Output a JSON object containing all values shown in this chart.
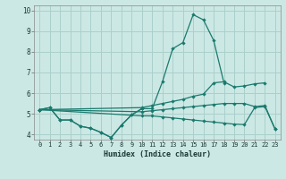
{
  "xlabel": "Humidex (Indice chaleur)",
  "background_color": "#cce8e4",
  "grid_color": "#aad0cc",
  "line_color": "#1a7a6e",
  "xlim": [
    -0.5,
    23.5
  ],
  "ylim": [
    3.75,
    10.25
  ],
  "xticks": [
    0,
    1,
    2,
    3,
    4,
    5,
    6,
    7,
    8,
    9,
    10,
    11,
    12,
    13,
    14,
    15,
    16,
    17,
    18,
    19,
    20,
    21,
    22,
    23
  ],
  "yticks": [
    4,
    5,
    6,
    7,
    8,
    9,
    10
  ],
  "lines": [
    {
      "x": [
        0,
        1,
        2,
        3,
        4,
        5,
        6,
        7,
        8,
        9,
        10,
        11,
        12,
        13,
        14,
        15,
        16,
        17,
        18,
        19,
        20,
        21,
        22,
        23
      ],
      "y": [
        5.2,
        5.3,
        4.7,
        4.7,
        4.4,
        4.3,
        4.1,
        3.85,
        4.45,
        4.95,
        5.25,
        5.25,
        6.55,
        8.15,
        8.45,
        9.8,
        9.55,
        8.55,
        6.5,
        null,
        null,
        null,
        null,
        null
      ]
    },
    {
      "x": [
        0,
        1,
        2,
        3,
        4,
        5,
        6,
        7,
        8,
        9,
        10
      ],
      "y": [
        5.2,
        5.3,
        4.7,
        4.7,
        4.4,
        4.3,
        4.1,
        3.85,
        4.45,
        4.95,
        5.25
      ]
    },
    {
      "x": [
        0,
        10,
        11,
        12,
        13,
        14,
        15,
        16,
        17,
        18,
        19,
        20,
        21,
        22
      ],
      "y": [
        5.2,
        5.3,
        5.4,
        5.5,
        5.6,
        5.7,
        5.85,
        5.95,
        6.5,
        6.55,
        6.3,
        6.35,
        6.45,
        6.5
      ]
    },
    {
      "x": [
        0,
        10,
        11,
        12,
        13,
        14,
        15,
        16,
        17,
        18,
        19,
        20,
        21,
        22,
        23
      ],
      "y": [
        5.2,
        4.9,
        4.9,
        4.85,
        4.8,
        4.75,
        4.7,
        4.65,
        4.6,
        4.55,
        4.5,
        4.48,
        5.3,
        5.35,
        4.25
      ]
    },
    {
      "x": [
        0,
        10,
        11,
        12,
        13,
        14,
        15,
        16,
        17,
        18,
        19,
        20,
        21,
        22,
        23
      ],
      "y": [
        5.2,
        5.1,
        5.15,
        5.2,
        5.25,
        5.3,
        5.35,
        5.4,
        5.45,
        5.5,
        5.5,
        5.5,
        5.35,
        5.4,
        4.25
      ]
    }
  ]
}
